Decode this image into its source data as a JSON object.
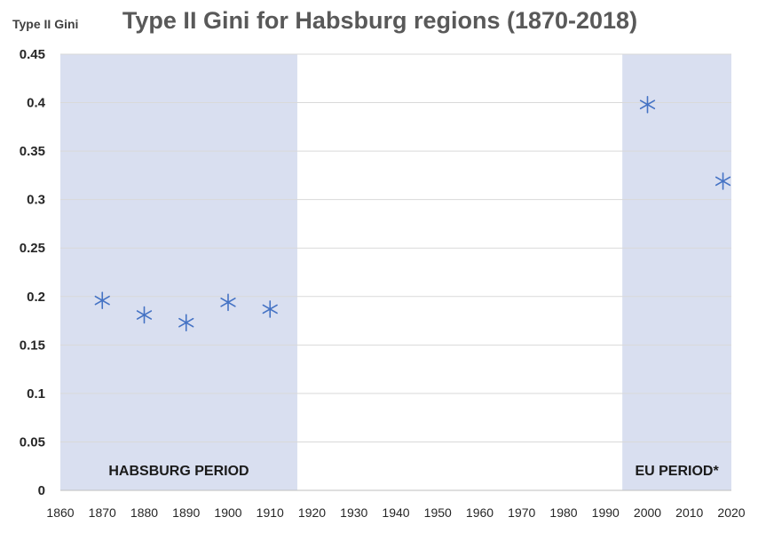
{
  "chart_data": {
    "type": "scatter",
    "title": "Type II Gini for Habsburg regions (1870-2018)",
    "ylabel": "Type II Gini",
    "xlabel": "",
    "xlim": [
      1860,
      2020
    ],
    "ylim": [
      0,
      0.45
    ],
    "x_ticks": [
      1860,
      1870,
      1880,
      1890,
      1900,
      1910,
      1920,
      1930,
      1940,
      1950,
      1960,
      1970,
      1980,
      1990,
      2000,
      2010,
      2020
    ],
    "y_ticks": [
      0,
      0.05,
      0.1,
      0.15,
      0.2,
      0.25,
      0.3,
      0.35,
      0.4,
      0.45
    ],
    "y_tick_labels": [
      "0",
      "0.05",
      "0.1",
      "0.15",
      "0.2",
      "0.25",
      "0.3",
      "0.35",
      "0.4",
      "0.45"
    ],
    "grid": true,
    "marker": "asterisk",
    "series": [
      {
        "name": "Type II Gini",
        "color": "#4472c4",
        "points": [
          {
            "x": 1870,
            "y": 0.196
          },
          {
            "x": 1880,
            "y": 0.181
          },
          {
            "x": 1890,
            "y": 0.173
          },
          {
            "x": 1900,
            "y": 0.194
          },
          {
            "x": 1910,
            "y": 0.187
          },
          {
            "x": 2000,
            "y": 0.398
          },
          {
            "x": 2018,
            "y": 0.319
          }
        ]
      }
    ],
    "shaded_periods": [
      {
        "label": "HABSBURG PERIOD",
        "start": 1860,
        "end": 1916.5,
        "color": "#d9dff0"
      },
      {
        "label": "EU PERIOD*",
        "start": 1994,
        "end": 2020,
        "color": "#d9dff0"
      }
    ]
  }
}
